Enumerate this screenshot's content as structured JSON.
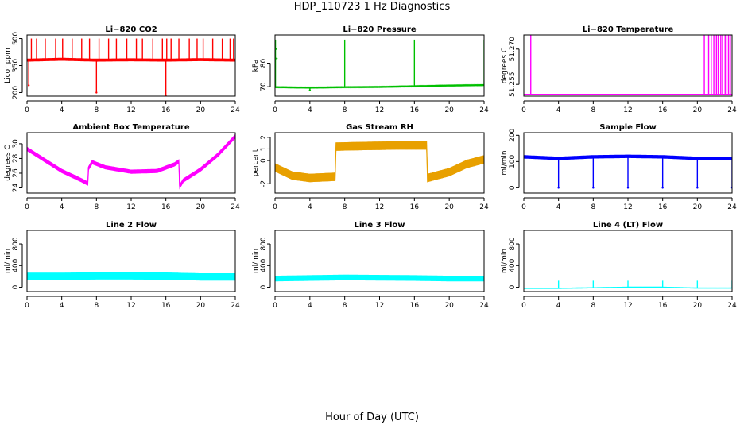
{
  "figure": {
    "title": "HDP_110723  1 Hz Diagnostics",
    "xlabel": "Hour of Day (UTC)"
  },
  "chart_data": [
    {
      "type": "line",
      "title": "Li−820 CO2",
      "ylabel": "Licor ppm",
      "color": "#ff0000",
      "xlim": [
        0,
        24
      ],
      "ylim": [
        180,
        520
      ],
      "xticks": [
        "0",
        "4",
        "8",
        "12",
        "16",
        "20",
        "24"
      ],
      "yticks": [
        "200",
        "350",
        "500"
      ],
      "baseline": [
        [
          0,
          380
        ],
        [
          4,
          385
        ],
        [
          8,
          380
        ],
        [
          12,
          382
        ],
        [
          16,
          380
        ],
        [
          20,
          383
        ],
        [
          24,
          380
        ]
      ],
      "band": 12,
      "spikes_up": [
        0.5,
        1.1,
        2.1,
        3.3,
        4.1,
        5.2,
        6.3,
        7.2,
        8.3,
        9.4,
        10.3,
        11.5,
        12.6,
        13.3,
        14.5,
        15.6,
        16.1,
        16.6,
        17.5,
        18.7,
        19.6,
        20.3,
        21.4,
        22.5,
        23.4,
        23.8
      ],
      "spike_up_value": 500,
      "spikes_down": [
        [
          0.2,
          240
        ],
        [
          8.0,
          200
        ],
        [
          16.0,
          180
        ]
      ],
      "points": []
    },
    {
      "type": "line",
      "title": "Li−820 Pressure",
      "ylabel": "kPa",
      "color": "#00c000",
      "xlim": [
        0,
        24
      ],
      "ylim": [
        66,
        92
      ],
      "xticks": [
        "0",
        "4",
        "8",
        "12",
        "16",
        "20",
        "24"
      ],
      "yticks": [
        "70",
        "80"
      ],
      "baseline": [
        [
          0,
          69.8
        ],
        [
          4,
          69.6
        ],
        [
          8,
          69.8
        ],
        [
          12,
          69.9
        ],
        [
          16,
          70.2
        ],
        [
          20,
          70.5
        ],
        [
          24,
          70.7
        ]
      ],
      "band": 0.4,
      "spikes_up": [
        0.05,
        8.0,
        16.0,
        24.0
      ],
      "spike_up_value": 90,
      "spikes_down": [
        [
          4.0,
          68.5
        ]
      ],
      "points": [
        [
          0.1,
          86
        ],
        [
          0.2,
          82
        ]
      ]
    },
    {
      "type": "line",
      "title": "Li−820 Temperature",
      "ylabel": "degrees C",
      "color": "#ff00ff",
      "xlim": [
        0,
        24
      ],
      "ylim": [
        51.25,
        51.276
      ],
      "xticks": [
        "0",
        "4",
        "8",
        "12",
        "16",
        "20",
        "24"
      ],
      "yticks": [
        "51.255",
        "51.270"
      ],
      "baseline": [
        [
          0,
          51.2508
        ],
        [
          24,
          51.2508
        ]
      ],
      "band": 0,
      "spikes_up": [
        0.8,
        20.8,
        21.3,
        21.6,
        21.9,
        22.2,
        22.4,
        22.7,
        22.9,
        23.2,
        23.4,
        23.6,
        23.8
      ],
      "spike_up_value": 51.276,
      "spikes_down": [],
      "points": []
    },
    {
      "type": "line",
      "title": "Ambient Box Temperature",
      "ylabel": "degrees C",
      "color": "#ff00ff",
      "xlim": [
        0,
        24
      ],
      "ylim": [
        23.3,
        31.5
      ],
      "xticks": [
        "0",
        "4",
        "8",
        "12",
        "16",
        "20",
        "24"
      ],
      "yticks": [
        "24",
        "26",
        "28",
        "30"
      ],
      "baseline": [
        [
          0,
          29.3
        ],
        [
          2,
          27.8
        ],
        [
          4,
          26.3
        ],
        [
          6,
          25.2
        ],
        [
          7,
          24.6
        ],
        [
          7.01,
          26.5
        ],
        [
          7.5,
          27.5
        ],
        [
          9,
          26.8
        ],
        [
          12,
          26.2
        ],
        [
          15,
          26.3
        ],
        [
          17,
          27.2
        ],
        [
          17.5,
          27.6
        ],
        [
          17.51,
          24.0
        ],
        [
          18,
          25.0
        ],
        [
          20,
          26.5
        ],
        [
          22,
          28.5
        ],
        [
          24,
          31.0
        ]
      ],
      "band": 0.45,
      "spikes_up": [],
      "spike_up_value": 0,
      "spikes_down": [],
      "points": []
    },
    {
      "type": "line",
      "title": "Gas Stream RH",
      "ylabel": "percent",
      "color": "#e8a000",
      "xlim": [
        0,
        24
      ],
      "ylim": [
        -2.8,
        2.4
      ],
      "xticks": [
        "0",
        "4",
        "8",
        "12",
        "16",
        "20",
        "24"
      ],
      "yticks": [
        "-2",
        "0",
        "1",
        "2"
      ],
      "baseline": [
        [
          0,
          -0.6
        ],
        [
          2,
          -1.3
        ],
        [
          4,
          -1.5
        ],
        [
          6.9,
          -1.4
        ],
        [
          7.0,
          1.2
        ],
        [
          10,
          1.25
        ],
        [
          14,
          1.3
        ],
        [
          17.4,
          1.3
        ],
        [
          17.5,
          -1.5
        ],
        [
          20,
          -1.0
        ],
        [
          22,
          -0.3
        ],
        [
          24,
          0.1
        ]
      ],
      "band": 0.65,
      "spikes_up": [],
      "spike_up_value": 0,
      "spikes_down": [],
      "points": []
    },
    {
      "type": "line",
      "title": "Sample Flow",
      "ylabel": "ml/min",
      "color": "#0000ff",
      "xlim": [
        0,
        24
      ],
      "ylim": [
        -20,
        210
      ],
      "xticks": [
        "0",
        "4",
        "8",
        "12",
        "16",
        "20",
        "24"
      ],
      "yticks": [
        "0",
        "100",
        "200"
      ],
      "baseline": [
        [
          0,
          118
        ],
        [
          4,
          112
        ],
        [
          8,
          118
        ],
        [
          12,
          120
        ],
        [
          16,
          118
        ],
        [
          20,
          112
        ],
        [
          24,
          112
        ]
      ],
      "band": 10,
      "spikes_up": [],
      "spike_up_value": 0,
      "spikes_down": [
        [
          4.0,
          0
        ],
        [
          8.0,
          0
        ],
        [
          12.0,
          0
        ],
        [
          16.0,
          0
        ],
        [
          20.0,
          0
        ],
        [
          24.0,
          0
        ]
      ],
      "points": []
    },
    {
      "type": "line",
      "title": "Line 2 Flow",
      "ylabel": "ml/min",
      "color": "#00ffff",
      "xlim": [
        0,
        24
      ],
      "ylim": [
        -80,
        1050
      ],
      "xticks": [
        "0",
        "4",
        "8",
        "12",
        "16",
        "20",
        "24"
      ],
      "yticks": [
        "0",
        "400",
        "800"
      ],
      "baseline": [
        [
          0,
          200
        ],
        [
          4,
          200
        ],
        [
          8,
          210
        ],
        [
          12,
          210
        ],
        [
          16,
          205
        ],
        [
          20,
          190
        ],
        [
          24,
          190
        ]
      ],
      "band": 120,
      "spikes_up": [],
      "spike_up_value": 0,
      "spikes_down": [],
      "points": []
    },
    {
      "type": "line",
      "title": "Line 3 Flow",
      "ylabel": "ml/min",
      "color": "#00ffff",
      "xlim": [
        0,
        24
      ],
      "ylim": [
        -80,
        1050
      ],
      "xticks": [
        "0",
        "4",
        "8",
        "12",
        "16",
        "20",
        "24"
      ],
      "yticks": [
        "0",
        "400",
        "800"
      ],
      "baseline": [
        [
          0,
          160
        ],
        [
          4,
          170
        ],
        [
          8,
          180
        ],
        [
          12,
          175
        ],
        [
          16,
          170
        ],
        [
          20,
          160
        ],
        [
          24,
          160
        ]
      ],
      "band": 90,
      "spikes_up": [],
      "spike_up_value": 0,
      "spikes_down": [],
      "points": []
    },
    {
      "type": "line",
      "title": "Line 4 (LT) Flow",
      "ylabel": "ml/min",
      "color": "#00ffff",
      "xlim": [
        0,
        24
      ],
      "ylim": [
        -80,
        1050
      ],
      "xticks": [
        "0",
        "4",
        "8",
        "12",
        "16",
        "20",
        "24"
      ],
      "yticks": [
        "0",
        "400",
        "800"
      ],
      "baseline": [
        [
          0,
          -20
        ],
        [
          4,
          -20
        ],
        [
          8,
          -10
        ],
        [
          12,
          0
        ],
        [
          16,
          0
        ],
        [
          20,
          -15
        ],
        [
          24,
          -15
        ]
      ],
      "band": 6,
      "spikes_up": [
        4.0,
        8.0,
        12.0,
        16.0,
        20.0,
        24.0
      ],
      "spike_up_value": 120,
      "spikes_down": [],
      "points": []
    }
  ]
}
